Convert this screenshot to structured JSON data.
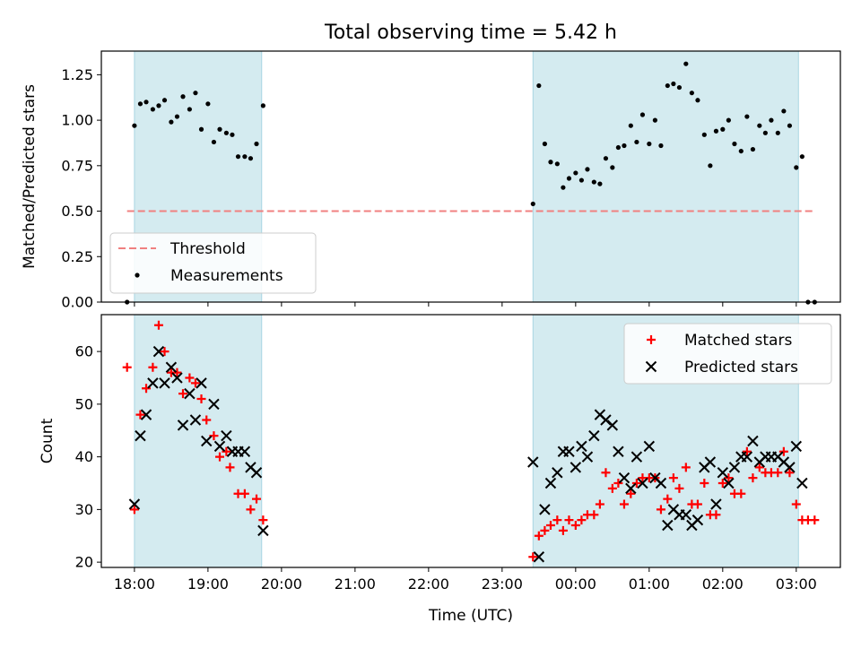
{
  "chart_data": {
    "type": "scatter",
    "title": "Total observing time = 5.42 h",
    "xlabel": "Time (UTC)",
    "x_ticks": [
      "18:00",
      "19:00",
      "20:00",
      "21:00",
      "22:00",
      "23:00",
      "00:00",
      "01:00",
      "02:00",
      "03:00"
    ],
    "x_unit": "hours since 18:00 UTC",
    "x_range": [
      -0.45,
      9.6
    ],
    "shaded_intervals": [
      [
        0.0,
        1.73
      ],
      [
        5.42,
        9.03
      ]
    ],
    "shade_color": "#d4ebf0",
    "panels": [
      {
        "ylabel": "Matched/Predicted stars",
        "ylim": [
          0,
          1.38
        ],
        "yticks": [
          "0.00",
          "0.25",
          "0.50",
          "0.75",
          "1.00",
          "1.25"
        ],
        "ytick_values": [
          0,
          0.25,
          0.5,
          0.75,
          1.0,
          1.25
        ],
        "threshold": {
          "label": "Threshold",
          "value": 0.5,
          "x_range": [
            -0.1,
            9.22
          ],
          "color": "#f08080"
        },
        "legend": {
          "position": "lower-left",
          "entries": [
            "Threshold",
            "Measurements"
          ]
        },
        "series": [
          {
            "name": "Measurements",
            "color": "#000000",
            "points": [
              [
                -0.1,
                0.0
              ],
              [
                0.0,
                0.97
              ],
              [
                0.08,
                1.09
              ],
              [
                0.16,
                1.1
              ],
              [
                0.25,
                1.06
              ],
              [
                0.33,
                1.08
              ],
              [
                0.41,
                1.11
              ],
              [
                0.5,
                0.99
              ],
              [
                0.58,
                1.02
              ],
              [
                0.66,
                1.13
              ],
              [
                0.75,
                1.06
              ],
              [
                0.83,
                1.15
              ],
              [
                0.91,
                0.95
              ],
              [
                1.0,
                1.09
              ],
              [
                1.08,
                0.88
              ],
              [
                1.16,
                0.95
              ],
              [
                1.25,
                0.93
              ],
              [
                1.33,
                0.92
              ],
              [
                1.41,
                0.8
              ],
              [
                1.5,
                0.8
              ],
              [
                1.58,
                0.79
              ],
              [
                1.66,
                0.87
              ],
              [
                1.75,
                1.08
              ],
              [
                5.42,
                0.54
              ],
              [
                5.5,
                1.19
              ],
              [
                5.58,
                0.87
              ],
              [
                5.66,
                0.77
              ],
              [
                5.75,
                0.76
              ],
              [
                5.83,
                0.63
              ],
              [
                5.91,
                0.68
              ],
              [
                6.0,
                0.71
              ],
              [
                6.08,
                0.67
              ],
              [
                6.16,
                0.73
              ],
              [
                6.25,
                0.66
              ],
              [
                6.33,
                0.65
              ],
              [
                6.41,
                0.79
              ],
              [
                6.5,
                0.74
              ],
              [
                6.58,
                0.85
              ],
              [
                6.66,
                0.86
              ],
              [
                6.75,
                0.97
              ],
              [
                6.83,
                0.88
              ],
              [
                6.91,
                1.03
              ],
              [
                7.0,
                0.87
              ],
              [
                7.08,
                1.0
              ],
              [
                7.16,
                0.86
              ],
              [
                7.25,
                1.19
              ],
              [
                7.33,
                1.2
              ],
              [
                7.41,
                1.18
              ],
              [
                7.5,
                1.31
              ],
              [
                7.58,
                1.15
              ],
              [
                7.66,
                1.11
              ],
              [
                7.75,
                0.92
              ],
              [
                7.83,
                0.75
              ],
              [
                7.91,
                0.94
              ],
              [
                8.0,
                0.95
              ],
              [
                8.08,
                1.0
              ],
              [
                8.16,
                0.87
              ],
              [
                8.25,
                0.83
              ],
              [
                8.33,
                1.02
              ],
              [
                8.41,
                0.84
              ],
              [
                8.5,
                0.97
              ],
              [
                8.58,
                0.93
              ],
              [
                8.66,
                1.0
              ],
              [
                8.75,
                0.93
              ],
              [
                8.83,
                1.05
              ],
              [
                8.91,
                0.97
              ],
              [
                9.0,
                0.74
              ],
              [
                9.08,
                0.8
              ],
              [
                9.16,
                0.0
              ],
              [
                9.25,
                0.0
              ]
            ]
          }
        ]
      },
      {
        "ylabel": "Count",
        "ylim": [
          19,
          67
        ],
        "yticks": [
          "20",
          "30",
          "40",
          "50",
          "60"
        ],
        "ytick_values": [
          20,
          30,
          40,
          50,
          60
        ],
        "legend": {
          "position": "upper-right",
          "entries": [
            "Matched stars",
            "Predicted stars"
          ]
        },
        "series": [
          {
            "name": "Matched stars",
            "marker": "plus",
            "color": "#ff0000",
            "points": [
              [
                -0.1,
                57
              ],
              [
                0.0,
                30
              ],
              [
                0.08,
                48
              ],
              [
                0.16,
                53
              ],
              [
                0.25,
                57
              ],
              [
                0.33,
                65
              ],
              [
                0.41,
                60
              ],
              [
                0.5,
                56
              ],
              [
                0.58,
                56
              ],
              [
                0.66,
                52
              ],
              [
                0.75,
                55
              ],
              [
                0.83,
                54
              ],
              [
                0.91,
                51
              ],
              [
                0.98,
                47
              ],
              [
                1.08,
                44
              ],
              [
                1.16,
                40
              ],
              [
                1.25,
                41
              ],
              [
                1.3,
                38
              ],
              [
                1.41,
                33
              ],
              [
                1.5,
                33
              ],
              [
                1.58,
                30
              ],
              [
                1.66,
                32
              ],
              [
                1.75,
                28
              ],
              [
                5.42,
                21
              ],
              [
                5.5,
                25
              ],
              [
                5.58,
                26
              ],
              [
                5.66,
                27
              ],
              [
                5.75,
                28
              ],
              [
                5.83,
                26
              ],
              [
                5.91,
                28
              ],
              [
                6.0,
                27
              ],
              [
                6.08,
                28
              ],
              [
                6.16,
                29
              ],
              [
                6.25,
                29
              ],
              [
                6.33,
                31
              ],
              [
                6.41,
                37
              ],
              [
                6.5,
                34
              ],
              [
                6.58,
                35
              ],
              [
                6.66,
                31
              ],
              [
                6.75,
                33
              ],
              [
                6.83,
                35
              ],
              [
                6.91,
                36
              ],
              [
                7.0,
                36
              ],
              [
                7.08,
                36
              ],
              [
                7.16,
                30
              ],
              [
                7.25,
                32
              ],
              [
                7.33,
                36
              ],
              [
                7.41,
                34
              ],
              [
                7.5,
                38
              ],
              [
                7.58,
                31
              ],
              [
                7.66,
                31
              ],
              [
                7.75,
                35
              ],
              [
                7.83,
                29
              ],
              [
                7.91,
                29
              ],
              [
                8.0,
                35
              ],
              [
                8.08,
                36
              ],
              [
                8.16,
                33
              ],
              [
                8.25,
                33
              ],
              [
                8.33,
                41
              ],
              [
                8.41,
                36
              ],
              [
                8.5,
                38
              ],
              [
                8.58,
                37
              ],
              [
                8.66,
                37
              ],
              [
                8.75,
                37
              ],
              [
                8.83,
                41
              ],
              [
                8.91,
                37
              ],
              [
                9.0,
                31
              ],
              [
                9.08,
                28
              ],
              [
                9.16,
                28
              ],
              [
                9.25,
                28
              ]
            ]
          },
          {
            "name": "Predicted stars",
            "marker": "x",
            "color": "#000000",
            "points": [
              [
                0.0,
                31
              ],
              [
                0.08,
                44
              ],
              [
                0.16,
                48
              ],
              [
                0.25,
                54
              ],
              [
                0.33,
                60
              ],
              [
                0.41,
                54
              ],
              [
                0.5,
                57
              ],
              [
                0.58,
                55
              ],
              [
                0.66,
                46
              ],
              [
                0.75,
                52
              ],
              [
                0.83,
                47
              ],
              [
                0.91,
                54
              ],
              [
                0.98,
                43
              ],
              [
                1.08,
                50
              ],
              [
                1.16,
                42
              ],
              [
                1.25,
                44
              ],
              [
                1.33,
                41
              ],
              [
                1.41,
                41
              ],
              [
                1.5,
                41
              ],
              [
                1.58,
                38
              ],
              [
                1.66,
                37
              ],
              [
                1.75,
                26
              ],
              [
                5.42,
                39
              ],
              [
                5.5,
                21
              ],
              [
                5.58,
                30
              ],
              [
                5.66,
                35
              ],
              [
                5.75,
                37
              ],
              [
                5.83,
                41
              ],
              [
                5.91,
                41
              ],
              [
                6.0,
                38
              ],
              [
                6.08,
                42
              ],
              [
                6.16,
                40
              ],
              [
                6.25,
                44
              ],
              [
                6.33,
                48
              ],
              [
                6.41,
                47
              ],
              [
                6.5,
                46
              ],
              [
                6.58,
                41
              ],
              [
                6.66,
                36
              ],
              [
                6.75,
                34
              ],
              [
                6.83,
                40
              ],
              [
                6.91,
                35
              ],
              [
                7.0,
                42
              ],
              [
                7.08,
                36
              ],
              [
                7.16,
                35
              ],
              [
                7.25,
                27
              ],
              [
                7.33,
                30
              ],
              [
                7.41,
                29
              ],
              [
                7.5,
                29
              ],
              [
                7.58,
                27
              ],
              [
                7.66,
                28
              ],
              [
                7.75,
                38
              ],
              [
                7.83,
                39
              ],
              [
                7.91,
                31
              ],
              [
                8.0,
                37
              ],
              [
                8.08,
                35
              ],
              [
                8.16,
                38
              ],
              [
                8.25,
                40
              ],
              [
                8.33,
                40
              ],
              [
                8.41,
                43
              ],
              [
                8.5,
                39
              ],
              [
                8.58,
                40
              ],
              [
                8.66,
                40
              ],
              [
                8.75,
                40
              ],
              [
                8.83,
                39
              ],
              [
                8.91,
                38
              ],
              [
                9.0,
                42
              ],
              [
                9.08,
                35
              ]
            ]
          }
        ]
      }
    ]
  }
}
